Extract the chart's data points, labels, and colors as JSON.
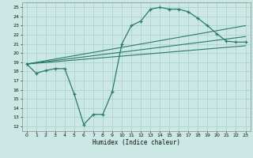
{
  "xlabel": "Humidex (Indice chaleur)",
  "ylabel": "",
  "bg_color": "#cce8e4",
  "grid_color": "#aad4cc",
  "line_color": "#2a7a6a",
  "xlim": [
    -0.5,
    23.5
  ],
  "ylim": [
    11.5,
    25.5
  ],
  "yticks": [
    12,
    13,
    14,
    15,
    16,
    17,
    18,
    19,
    20,
    21,
    22,
    23,
    24,
    25
  ],
  "xticks": [
    0,
    1,
    2,
    3,
    4,
    5,
    6,
    7,
    8,
    9,
    10,
    11,
    12,
    13,
    14,
    15,
    16,
    17,
    18,
    19,
    20,
    21,
    22,
    23
  ],
  "series_main": {
    "x": [
      0,
      1,
      2,
      3,
      4,
      5,
      6,
      7,
      8,
      9,
      10,
      11,
      12,
      13,
      14,
      15,
      16,
      17,
      18,
      19,
      20,
      21,
      22,
      23
    ],
    "y": [
      18.8,
      17.8,
      18.1,
      18.3,
      18.3,
      15.5,
      12.2,
      13.3,
      13.3,
      15.8,
      21.0,
      23.0,
      23.5,
      24.8,
      25.0,
      24.8,
      24.8,
      24.5,
      23.8,
      23.0,
      22.1,
      21.3,
      21.2,
      21.2
    ]
  },
  "series_lines": [
    {
      "x": [
        0,
        23
      ],
      "y": [
        18.8,
        23.0
      ]
    },
    {
      "x": [
        0,
        23
      ],
      "y": [
        18.8,
        21.8
      ]
    },
    {
      "x": [
        0,
        23
      ],
      "y": [
        18.8,
        20.8
      ]
    }
  ]
}
